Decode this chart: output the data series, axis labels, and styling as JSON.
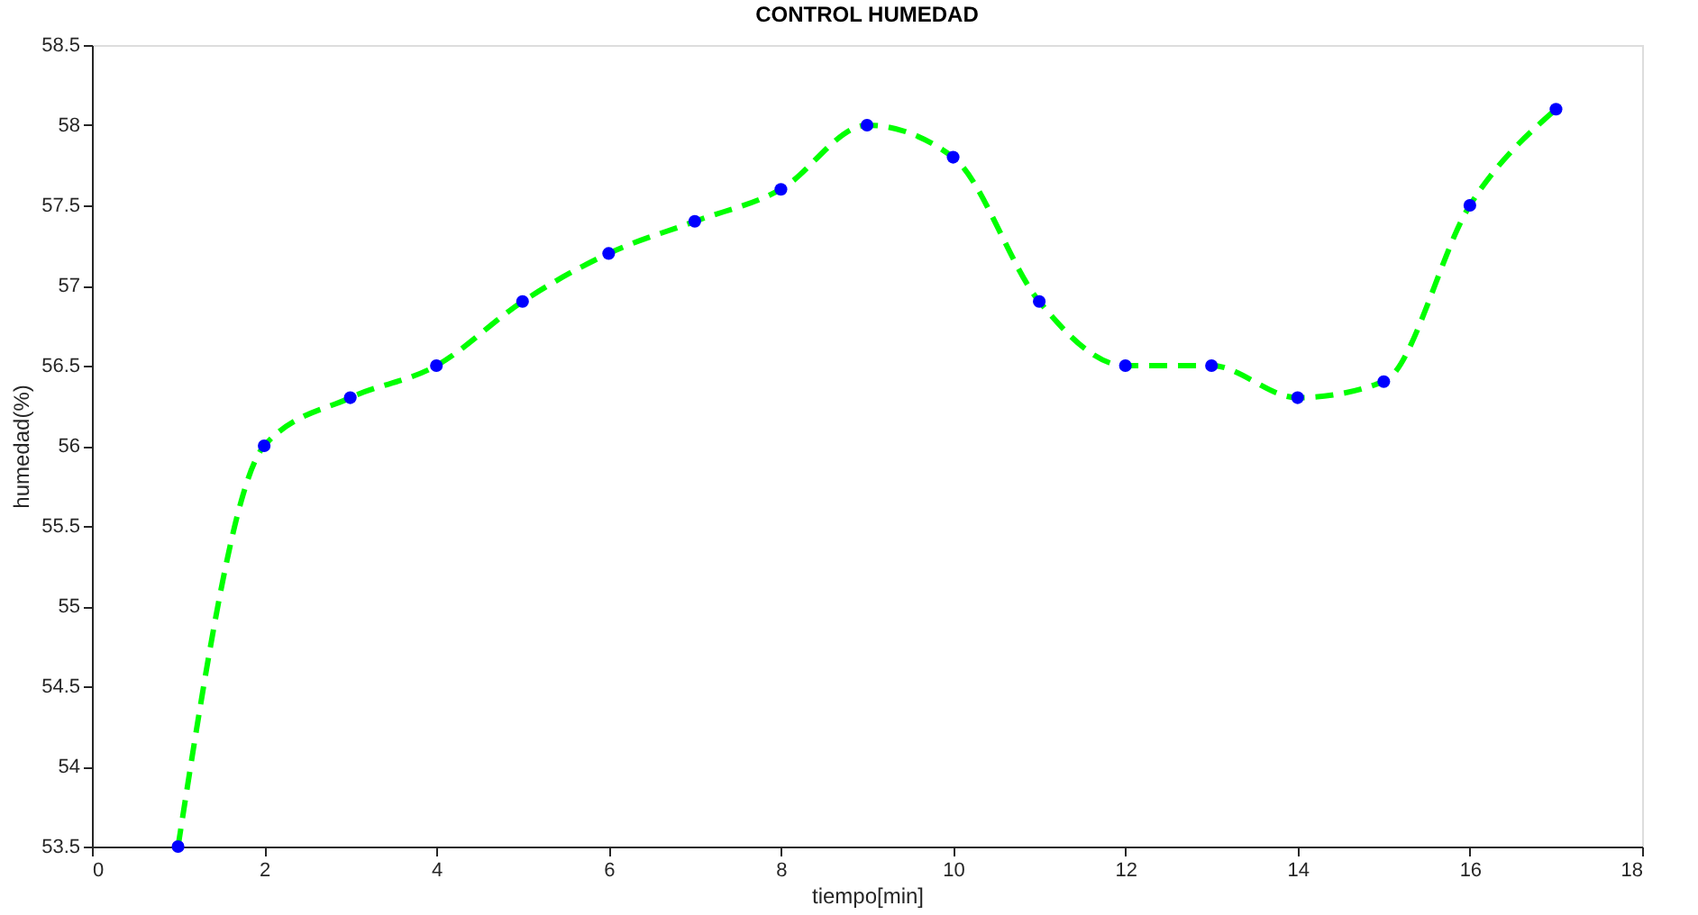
{
  "chart_data": {
    "type": "line",
    "title": "CONTROL HUMEDAD",
    "xlabel": "tiempo[min]",
    "ylabel": "humedad(%)",
    "x": [
      1,
      2,
      3,
      4,
      5,
      6,
      7,
      8,
      9,
      10,
      11,
      12,
      13,
      14,
      15,
      16,
      17
    ],
    "series": [
      {
        "color": "#00ff00",
        "line_style": "dashed",
        "marker": "none",
        "values": [
          53.5,
          56,
          56.3,
          56.5,
          56.9,
          57.2,
          57.4,
          57.6,
          58,
          57.8,
          56.9,
          56.5,
          56.5,
          56.3,
          56.4,
          57.5,
          58.1
        ]
      },
      {
        "type": "scatter",
        "color": "#0000ff",
        "marker": "circle",
        "values": [
          53.5,
          56,
          56.3,
          56.5,
          56.9,
          57.2,
          57.4,
          57.6,
          58,
          57.8,
          56.9,
          56.5,
          56.5,
          56.3,
          56.4,
          57.5,
          58.1
        ]
      }
    ],
    "xlim": [
      0,
      18
    ],
    "xticks": [
      0,
      2,
      4,
      6,
      8,
      10,
      12,
      14,
      16,
      18
    ],
    "ylim": [
      53.5,
      58.5
    ],
    "yticks": [
      53.5,
      54,
      54.5,
      55,
      55.5,
      56,
      56.5,
      57,
      57.5,
      58,
      58.5
    ],
    "grid": false
  }
}
